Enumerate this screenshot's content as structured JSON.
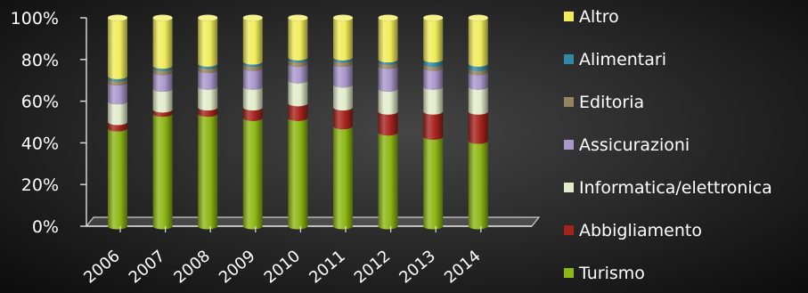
{
  "chart_data": {
    "type": "bar",
    "stacked": true,
    "orientation": "vertical",
    "style": "3d-cylinder",
    "categories": [
      "2006",
      "2007",
      "2008",
      "2009",
      "2010",
      "2011",
      "2012",
      "2013",
      "2014"
    ],
    "yticks": [
      "0%",
      "20%",
      "40%",
      "60%",
      "80%",
      "100%"
    ],
    "ylim": [
      0,
      100
    ],
    "grid": false,
    "legend_position": "right",
    "series": [
      {
        "name": "Turismo",
        "color": "#8db714",
        "values": [
          47,
          54,
          54,
          52,
          52,
          48,
          45,
          43,
          41
        ]
      },
      {
        "name": "Abbigliamento",
        "color": "#a6231c",
        "values": [
          3,
          2,
          3,
          5,
          7,
          9,
          10,
          12,
          14
        ]
      },
      {
        "name": "Informatica/elettronica",
        "color": "#e2ecca",
        "values": [
          10,
          10,
          10,
          10,
          11,
          11,
          11,
          12,
          12
        ]
      },
      {
        "name": "Assicurazioni",
        "color": "#aa97cc",
        "values": [
          9,
          8,
          8,
          9,
          8,
          10,
          11,
          9,
          7
        ]
      },
      {
        "name": "Editoria",
        "color": "#958560",
        "values": [
          2,
          2,
          2,
          2,
          2,
          2,
          2,
          2,
          2
        ]
      },
      {
        "name": "Alimentari",
        "color": "#2f88a6",
        "values": [
          1,
          1,
          1,
          1,
          1,
          1,
          1,
          2,
          2
        ]
      },
      {
        "name": "Altro",
        "color": "#f1ec5a",
        "values": [
          28,
          23,
          22,
          21,
          19,
          19,
          20,
          20,
          22
        ]
      }
    ]
  }
}
